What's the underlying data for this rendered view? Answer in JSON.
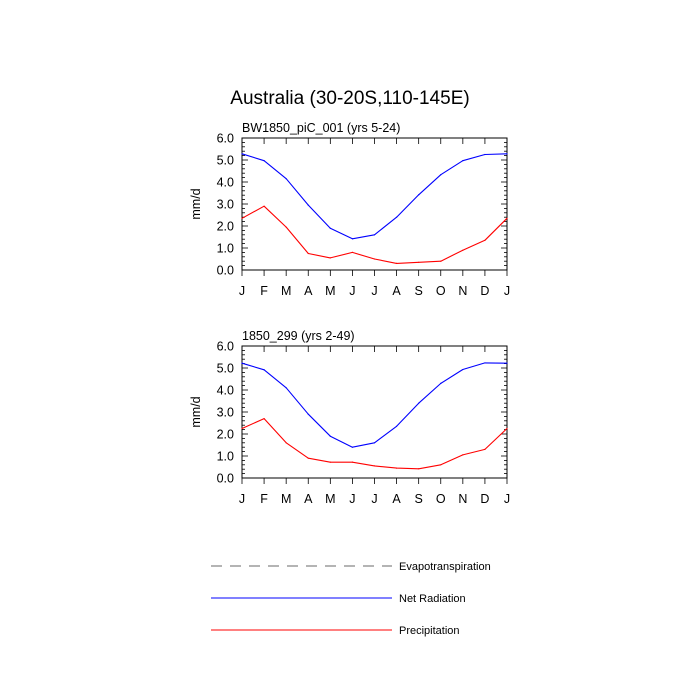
{
  "title": "Australia (30-20S,110-145E)",
  "chart_data": [
    {
      "type": "line",
      "subtitle": "BW1850_piC_001 (yrs 5-24)",
      "ylabel": "mm/d",
      "xlabel": "",
      "ylim": [
        0,
        6
      ],
      "yticks": [
        "0.0",
        "1.0",
        "2.0",
        "3.0",
        "4.0",
        "5.0",
        "6.0"
      ],
      "categories": [
        "J",
        "F",
        "M",
        "A",
        "M",
        "J",
        "J",
        "A",
        "S",
        "O",
        "N",
        "D",
        "J"
      ],
      "series": [
        {
          "name": "Net Radiation",
          "color": "#0000ff",
          "values": [
            5.28,
            4.97,
            4.15,
            2.95,
            1.9,
            1.42,
            1.6,
            2.4,
            3.42,
            4.33,
            4.97,
            5.25,
            5.28
          ]
        },
        {
          "name": "Precipitation",
          "color": "#ff0000",
          "values": [
            2.35,
            2.9,
            1.95,
            0.75,
            0.55,
            0.8,
            0.5,
            0.3,
            0.35,
            0.4,
            0.9,
            1.35,
            2.35
          ]
        }
      ]
    },
    {
      "type": "line",
      "subtitle": "1850_299 (yrs 2-49)",
      "ylabel": "mm/d",
      "xlabel": "",
      "ylim": [
        0,
        6
      ],
      "yticks": [
        "0.0",
        "1.0",
        "2.0",
        "3.0",
        "4.0",
        "5.0",
        "6.0"
      ],
      "categories": [
        "J",
        "F",
        "M",
        "A",
        "M",
        "J",
        "J",
        "A",
        "S",
        "O",
        "N",
        "D",
        "J"
      ],
      "series": [
        {
          "name": "Net Radiation",
          "color": "#0000ff",
          "values": [
            5.22,
            4.92,
            4.1,
            2.9,
            1.9,
            1.4,
            1.6,
            2.35,
            3.4,
            4.3,
            4.93,
            5.23,
            5.22
          ]
        },
        {
          "name": "Precipitation",
          "color": "#ff0000",
          "values": [
            2.25,
            2.7,
            1.6,
            0.9,
            0.72,
            0.72,
            0.55,
            0.45,
            0.42,
            0.6,
            1.05,
            1.3,
            2.25
          ]
        }
      ]
    }
  ],
  "legend": [
    {
      "name": "Evapotranspiration",
      "color": "#888888",
      "dashed": true
    },
    {
      "name": "Net Radiation",
      "color": "#0000ff",
      "dashed": false
    },
    {
      "name": "Precipitation",
      "color": "#ff0000",
      "dashed": false
    }
  ]
}
